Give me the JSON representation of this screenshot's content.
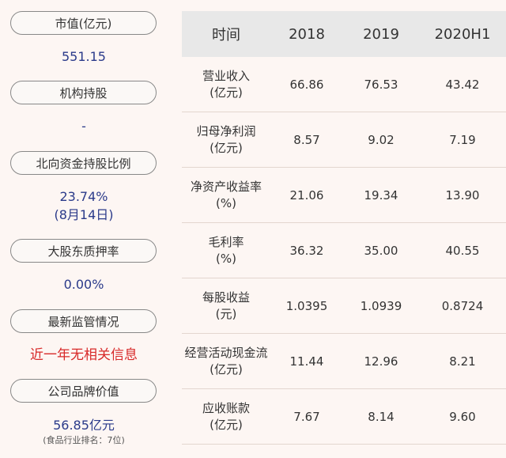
{
  "left_panel": {
    "items": [
      {
        "label": "市值(亿元)",
        "value": "551.15"
      },
      {
        "label": "机构持股",
        "value": "-"
      },
      {
        "label": "北向资金持股比例",
        "value": "23.74%",
        "value2": "(8月14日)"
      },
      {
        "label": "大股东质押率",
        "value": "0.00%"
      },
      {
        "label": "最新监管情况",
        "value": "近一年无相关信息"
      },
      {
        "label": "公司品牌价值",
        "value": "56.85亿元",
        "note": "(食品行业排名：7位)"
      }
    ]
  },
  "table": {
    "headers": [
      "时间",
      "2018",
      "2019",
      "2020H1"
    ],
    "rows": [
      {
        "label1": "营业收入",
        "label2": "(亿元)",
        "values": [
          "66.86",
          "76.53",
          "43.42"
        ]
      },
      {
        "label1": "归母净利润",
        "label2": "(亿元)",
        "values": [
          "8.57",
          "9.02",
          "7.19"
        ]
      },
      {
        "label1": "净资产收益率",
        "label2": "(%)",
        "values": [
          "21.06",
          "19.34",
          "13.90"
        ]
      },
      {
        "label1": "毛利率",
        "label2": "(%)",
        "values": [
          "36.32",
          "35.00",
          "40.55"
        ]
      },
      {
        "label1": "每股收益",
        "label2": "(元)",
        "values": [
          "1.0395",
          "1.0939",
          "0.8724"
        ]
      },
      {
        "label1": "经营活动现金流",
        "label2": "(亿元)",
        "values": [
          "11.44",
          "12.96",
          "8.21"
        ]
      },
      {
        "label1": "应收账款",
        "label2": "(亿元)",
        "values": [
          "7.67",
          "8.14",
          "9.60"
        ]
      }
    ]
  }
}
